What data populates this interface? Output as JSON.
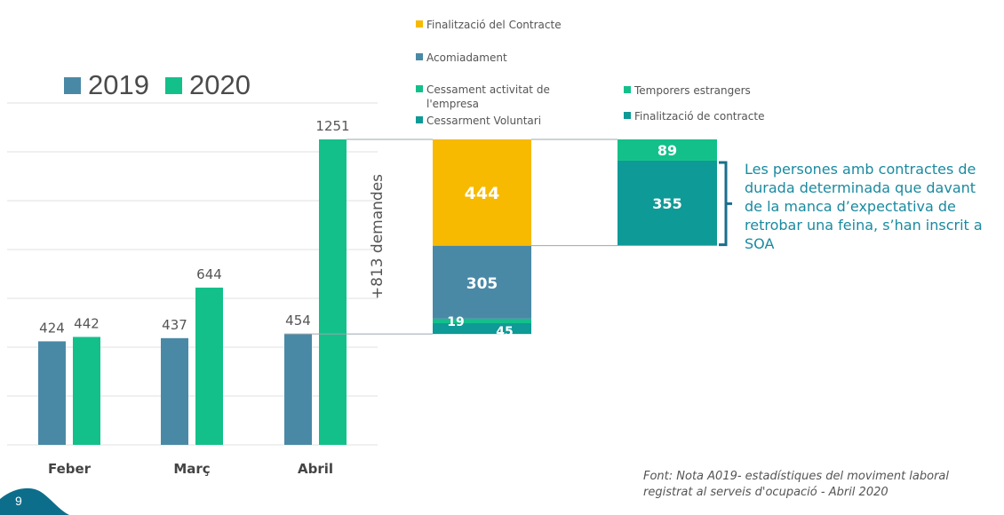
{
  "page": {
    "number": "9",
    "source_text_lines": [
      "Font: Nota A019- estadístiques del moviment laboral",
      "registrat al serveis d'ocupació - Abril 2020"
    ],
    "note_lines": [
      "Les persones amb contractes de",
      "durada determinada que davant",
      "de la manca d’expectativa de",
      "retrobar una feina, s’han inscrit a",
      "SOA"
    ]
  },
  "colors": {
    "y2019": "#4A89A6",
    "y2020": "#13C08A",
    "finalitzacio_contracte": "#F7BA00",
    "acomiadament": "#4A89A6",
    "cessament_activitat": "#13C08A",
    "cessament_voluntari": "#0E9A96",
    "temporers": "#13C08A",
    "finalitzacio_de_contracte": "#0E9A96",
    "gridline": "#e6e6e6",
    "connector": "#9aa7ad",
    "bracket": "#1a6e8c",
    "page_tab": "#0D6E8C"
  },
  "chart_data": [
    {
      "type": "bar",
      "title": "",
      "categories": [
        "Feber",
        "Març",
        "Abril"
      ],
      "series": [
        {
          "name": "2019",
          "values": [
            424,
            437,
            454
          ]
        },
        {
          "name": "2020",
          "values": [
            442,
            644,
            1251
          ]
        }
      ],
      "ylim": [
        0,
        1400
      ],
      "ytick_step": 200,
      "grid": true,
      "legend": "top-left",
      "annotation": "+813 demandes"
    },
    {
      "type": "bar",
      "stacked": true,
      "title": "Breakdown of +813 demandes",
      "segments": [
        {
          "name": "Cessarment Voluntari",
          "value": 45
        },
        {
          "name": "Cessament activitat de l'empresa",
          "value": 19
        },
        {
          "name": "Acomiadament",
          "value": 305
        },
        {
          "name": "Finalització del Contracte",
          "value": 444
        }
      ],
      "total": 813
    },
    {
      "type": "bar",
      "stacked": true,
      "title": "Breakdown of Finalització del Contracte (444)",
      "segments": [
        {
          "name": "Finalització de contracte",
          "value": 355
        },
        {
          "name": "Temporers estrangers",
          "value": 89
        }
      ],
      "total": 444
    }
  ],
  "legend_main": [
    {
      "label": "2019",
      "color_key": "y2019"
    },
    {
      "label": "2020",
      "color_key": "y2020"
    }
  ],
  "legend_breakdown": [
    {
      "label": "Finalització del Contracte",
      "color": "#F7BA00"
    },
    {
      "label": "Acomiadament",
      "color": "#4A89A6"
    },
    {
      "label": "Cessament activitat de",
      "label2": "l'empresa",
      "color": "#13C08A"
    },
    {
      "label": "Cessarment Voluntari",
      "color": "#0E9A96"
    },
    {
      "label": "Temporers estrangers",
      "color": "#13C08A"
    },
    {
      "label": "Finalització de contracte",
      "color": "#0E9A96"
    }
  ]
}
